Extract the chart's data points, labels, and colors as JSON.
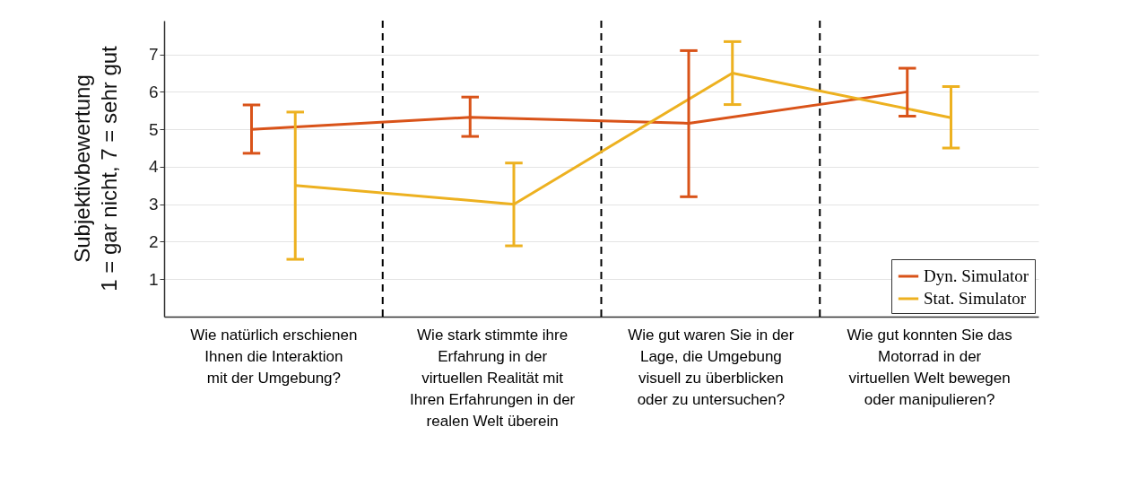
{
  "chart_data": {
    "type": "line",
    "ylabel": "Subjektivbewertung\n1 = gar nicht, 7 = sehr gut",
    "categories": [
      "Wie natürlich erschienen Ihnen die Interaktion mit der Umgebung?",
      "Wie stark stimmte ihre Erfahrung in der virtuellen Realität mit Ihren Erfahrungen in der realen Welt überein",
      "Wie gut waren Sie in der Lage, die Umgebung visuell zu überblicken oder zu untersuchen?",
      "Wie gut konnten Sie das Motorrad in der virtuellen Welt bewegen oder manipulieren?"
    ],
    "series": [
      {
        "name": "Dyn. Simulator",
        "color": "#d95319",
        "values": [
          5.0,
          5.32,
          5.16,
          6.0
        ],
        "errors": [
          [
            4.36,
            5.65
          ],
          [
            4.81,
            5.86
          ],
          [
            3.2,
            7.1
          ],
          [
            5.35,
            6.63
          ]
        ]
      },
      {
        "name": "Stat. Simulator",
        "color": "#edb120",
        "values": [
          3.5,
          3.0,
          6.5,
          5.31
        ],
        "errors": [
          [
            1.53,
            5.46
          ],
          [
            1.89,
            4.1
          ],
          [
            5.66,
            7.34
          ],
          [
            4.5,
            6.14
          ]
        ]
      }
    ],
    "ylim": [
      0,
      7.9
    ],
    "yticks": [
      1,
      2,
      3,
      4,
      5,
      6,
      7
    ],
    "grid": "y",
    "legend": "bottom right",
    "line_style": "solid",
    "marker": "none"
  }
}
